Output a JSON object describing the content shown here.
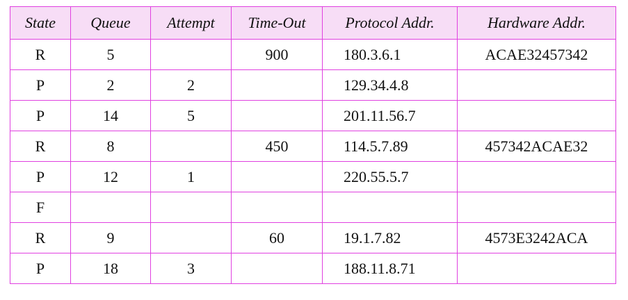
{
  "table": {
    "headers": [
      "State",
      "Queue",
      "Attempt",
      "Time-Out",
      "Protocol Addr.",
      "Hardware Addr."
    ],
    "rows": [
      [
        "R",
        "5",
        "",
        "900",
        "180.3.6.1",
        "ACAE32457342"
      ],
      [
        "P",
        "2",
        "2",
        "",
        "129.34.4.8",
        ""
      ],
      [
        "P",
        "14",
        "5",
        "",
        "201.11.56.7",
        ""
      ],
      [
        "R",
        "8",
        "",
        "450",
        "114.5.7.89",
        "457342ACAE32"
      ],
      [
        "P",
        "12",
        "1",
        "",
        "220.55.5.7",
        ""
      ],
      [
        "F",
        "",
        "",
        "",
        "",
        ""
      ],
      [
        "R",
        "9",
        "",
        "60",
        "19.1.7.82",
        "4573E3242ACA"
      ],
      [
        "P",
        "18",
        "3",
        "",
        "188.11.8.71",
        ""
      ]
    ]
  },
  "colors": {
    "border": "#e040e0",
    "header_background": "#f7ddf6"
  }
}
